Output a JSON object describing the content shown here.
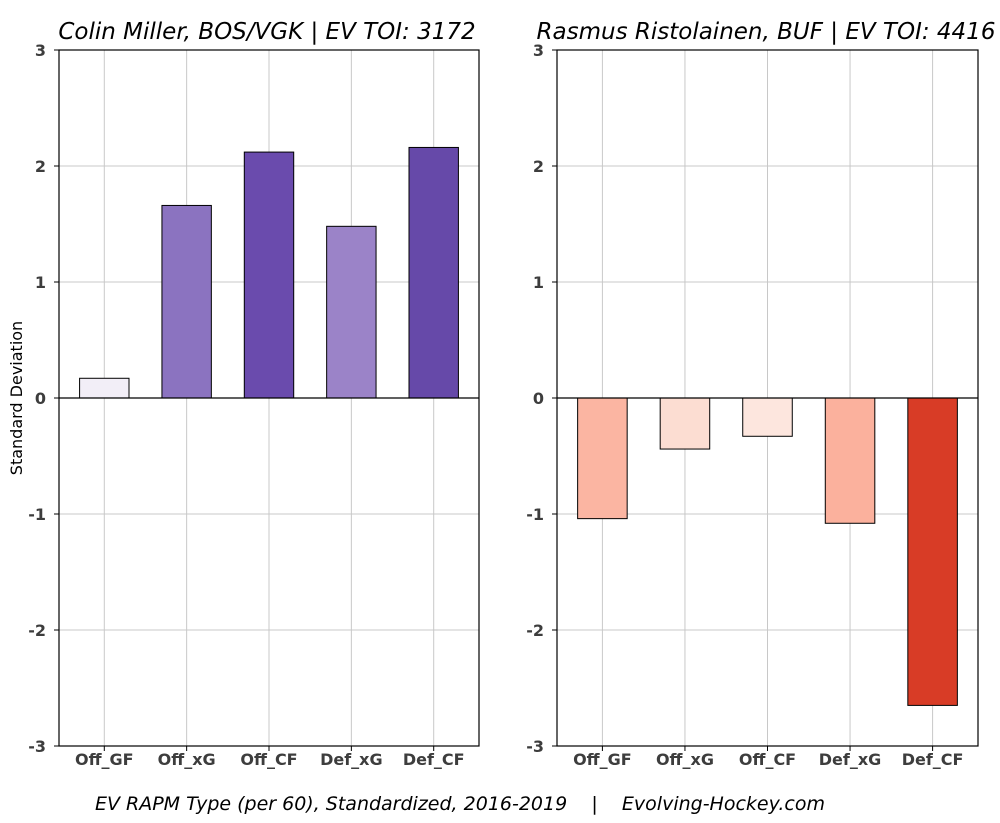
{
  "chart_data": [
    {
      "type": "bar",
      "title": "Colin Miller, BOS/VGK  |  EV TOI: 3172",
      "ylabel": "Standard Deviation",
      "xlabel": "",
      "categories": [
        "Off_GF",
        "Off_xG",
        "Off_CF",
        "Def_xG",
        "Def_CF"
      ],
      "values": [
        0.17,
        1.66,
        2.12,
        1.48,
        2.16
      ],
      "colors": [
        "#f2eef7",
        "#8b73c0",
        "#6a4bad",
        "#9b83c8",
        "#6649a9"
      ],
      "ylim": [
        -3,
        3
      ],
      "yticks": [
        -3,
        -2,
        -1,
        0,
        1,
        2,
        3
      ],
      "grid": true
    },
    {
      "type": "bar",
      "title": "Rasmus Ristolainen, BUF  |  EV TOI: 4416",
      "ylabel": "",
      "xlabel": "",
      "categories": [
        "Off_GF",
        "Off_xG",
        "Off_CF",
        "Def_xG",
        "Def_CF"
      ],
      "values": [
        -1.04,
        -0.44,
        -0.33,
        -1.08,
        -2.65
      ],
      "colors": [
        "#fbb5a2",
        "#fcddd2",
        "#fde6de",
        "#fbb19d",
        "#d83c26"
      ],
      "ylim": [
        -3,
        3
      ],
      "yticks": [
        -3,
        -2,
        -1,
        0,
        1,
        2,
        3
      ],
      "grid": true
    }
  ],
  "caption": "EV RAPM Type (per 60), Standardized, 2016-2019    |    Evolving-Hockey.com"
}
